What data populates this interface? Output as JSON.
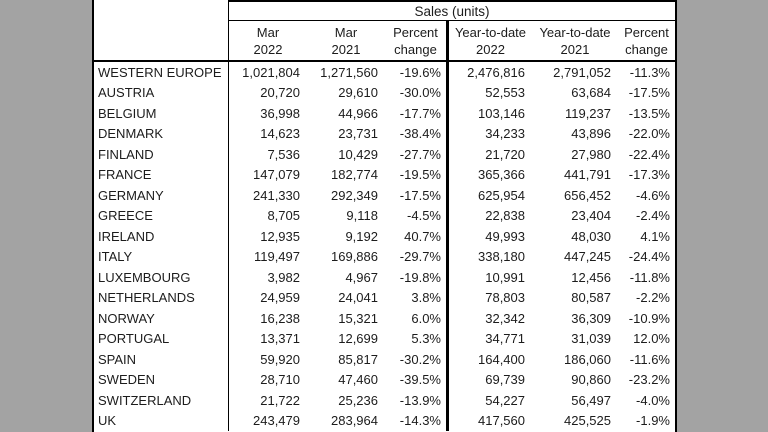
{
  "page": {
    "background_color": "#a3a3a3",
    "table_background": "#ffffff",
    "border_color": "#000000",
    "text_color": "#1c1c1c"
  },
  "table": {
    "group_header": "Sales (units)",
    "columns": [
      {
        "line1": "Mar",
        "line2": "2022"
      },
      {
        "line1": "Mar",
        "line2": "2021"
      },
      {
        "line1": "Percent",
        "line2": "change"
      },
      {
        "line1": "Year-to-date",
        "line2": "2022"
      },
      {
        "line1": "Year-to-date",
        "line2": "2021"
      },
      {
        "line1": "Percent",
        "line2": "change"
      }
    ],
    "rows": [
      {
        "label": "WESTERN EUROPE",
        "values": [
          "1,021,804",
          "1,271,560",
          "-19.6%",
          "2,476,816",
          "2,791,052",
          "-11.3%"
        ]
      },
      {
        "label": "AUSTRIA",
        "values": [
          "20,720",
          "29,610",
          "-30.0%",
          "52,553",
          "63,684",
          "-17.5%"
        ]
      },
      {
        "label": "BELGIUM",
        "values": [
          "36,998",
          "44,966",
          "-17.7%",
          "103,146",
          "119,237",
          "-13.5%"
        ]
      },
      {
        "label": "DENMARK",
        "values": [
          "14,623",
          "23,731",
          "-38.4%",
          "34,233",
          "43,896",
          "-22.0%"
        ]
      },
      {
        "label": "FINLAND",
        "values": [
          "7,536",
          "10,429",
          "-27.7%",
          "21,720",
          "27,980",
          "-22.4%"
        ]
      },
      {
        "label": "FRANCE",
        "values": [
          "147,079",
          "182,774",
          "-19.5%",
          "365,366",
          "441,791",
          "-17.3%"
        ]
      },
      {
        "label": "GERMANY",
        "values": [
          "241,330",
          "292,349",
          "-17.5%",
          "625,954",
          "656,452",
          "-4.6%"
        ]
      },
      {
        "label": "GREECE",
        "values": [
          "8,705",
          "9,118",
          "-4.5%",
          "22,838",
          "23,404",
          "-2.4%"
        ]
      },
      {
        "label": "IRELAND",
        "values": [
          "12,935",
          "9,192",
          "40.7%",
          "49,993",
          "48,030",
          "4.1%"
        ]
      },
      {
        "label": "ITALY",
        "values": [
          "119,497",
          "169,886",
          "-29.7%",
          "338,180",
          "447,245",
          "-24.4%"
        ]
      },
      {
        "label": "LUXEMBOURG",
        "values": [
          "3,982",
          "4,967",
          "-19.8%",
          "10,991",
          "12,456",
          "-11.8%"
        ]
      },
      {
        "label": "NETHERLANDS",
        "values": [
          "24,959",
          "24,041",
          "3.8%",
          "78,803",
          "80,587",
          "-2.2%"
        ]
      },
      {
        "label": "NORWAY",
        "values": [
          "16,238",
          "15,321",
          "6.0%",
          "32,342",
          "36,309",
          "-10.9%"
        ]
      },
      {
        "label": "PORTUGAL",
        "values": [
          "13,371",
          "12,699",
          "5.3%",
          "34,771",
          "31,039",
          "12.0%"
        ]
      },
      {
        "label": "SPAIN",
        "values": [
          "59,920",
          "85,817",
          "-30.2%",
          "164,400",
          "186,060",
          "-11.6%"
        ]
      },
      {
        "label": "SWEDEN",
        "values": [
          "28,710",
          "47,460",
          "-39.5%",
          "69,739",
          "90,860",
          "-23.2%"
        ]
      },
      {
        "label": "SWITZERLAND",
        "values": [
          "21,722",
          "25,236",
          "-13.9%",
          "54,227",
          "56,497",
          "-4.0%"
        ]
      },
      {
        "label": "UK",
        "values": [
          "243,479",
          "283,964",
          "-14.3%",
          "417,560",
          "425,525",
          "-1.9%"
        ]
      }
    ]
  }
}
